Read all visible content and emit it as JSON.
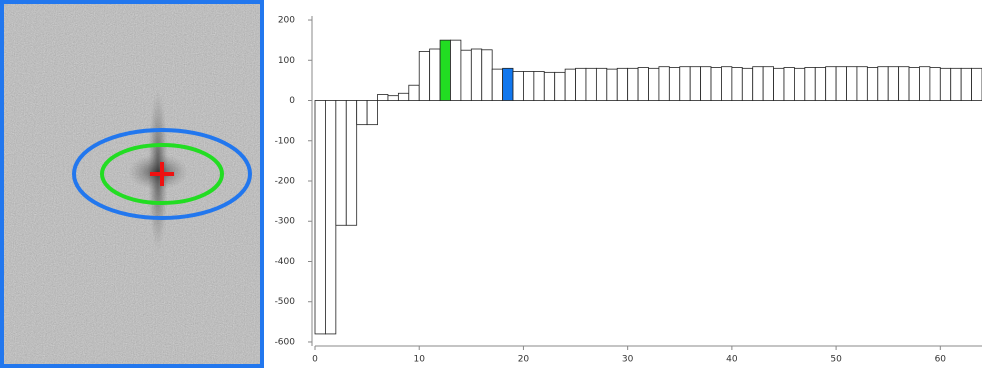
{
  "chart_data": {
    "type": "bar",
    "x": [
      0,
      1,
      2,
      3,
      4,
      5,
      6,
      7,
      8,
      9,
      10,
      11,
      12,
      13,
      14,
      15,
      16,
      17,
      18,
      19,
      20,
      21,
      22,
      23,
      24,
      25,
      26,
      27,
      28,
      29,
      30,
      31,
      32,
      33,
      34,
      35,
      36,
      37,
      38,
      39,
      40,
      41,
      42,
      43,
      44,
      45,
      46,
      47,
      48,
      49,
      50,
      51,
      52,
      53,
      54,
      55,
      56,
      57,
      58,
      59,
      60,
      61,
      62,
      63
    ],
    "values": [
      -580,
      -580,
      -310,
      -310,
      -60,
      -60,
      15,
      12,
      18,
      38,
      122,
      128,
      150,
      150,
      125,
      128,
      126,
      78,
      80,
      72,
      72,
      72,
      70,
      70,
      78,
      80,
      80,
      80,
      78,
      80,
      80,
      82,
      80,
      84,
      82,
      84,
      84,
      84,
      82,
      84,
      82,
      80,
      84,
      84,
      80,
      82,
      80,
      82,
      82,
      84,
      84,
      84,
      84,
      82,
      84,
      84,
      84,
      82,
      84,
      82,
      80,
      80,
      80,
      80
    ],
    "colors": [
      "#ffffff",
      "#ffffff",
      "#ffffff",
      "#ffffff",
      "#ffffff",
      "#ffffff",
      "#ffffff",
      "#ffffff",
      "#ffffff",
      "#ffffff",
      "#ffffff",
      "#ffffff",
      "#22dd22",
      "#ffffff",
      "#ffffff",
      "#ffffff",
      "#ffffff",
      "#ffffff",
      "#1177ee",
      "#ffffff",
      "#ffffff",
      "#ffffff",
      "#ffffff",
      "#ffffff",
      "#ffffff",
      "#ffffff",
      "#ffffff",
      "#ffffff",
      "#ffffff",
      "#ffffff",
      "#ffffff",
      "#ffffff",
      "#ffffff",
      "#ffffff",
      "#ffffff",
      "#ffffff",
      "#ffffff",
      "#ffffff",
      "#ffffff",
      "#ffffff",
      "#ffffff",
      "#ffffff",
      "#ffffff",
      "#ffffff",
      "#ffffff",
      "#ffffff",
      "#ffffff",
      "#ffffff",
      "#ffffff",
      "#ffffff",
      "#ffffff",
      "#ffffff",
      "#ffffff",
      "#ffffff",
      "#ffffff",
      "#ffffff",
      "#ffffff",
      "#ffffff",
      "#ffffff",
      "#ffffff",
      "#ffffff",
      "#ffffff",
      "#ffffff",
      "#ffffff"
    ],
    "xlim": [
      0,
      64
    ],
    "ylim": [
      -610,
      210
    ],
    "xticks": [
      0,
      10,
      20,
      30,
      40,
      50,
      60
    ],
    "yticks": [
      200,
      100,
      0,
      -100,
      -200,
      -300,
      -400,
      -500,
      -600
    ]
  }
}
